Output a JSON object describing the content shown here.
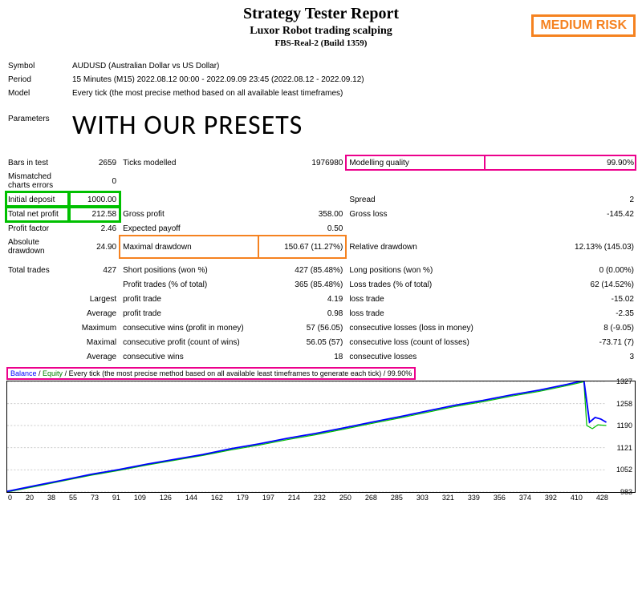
{
  "header": {
    "title": "Strategy Tester Report",
    "subtitle": "Luxor Robot trading scalping",
    "build": "FBS-Real-2 (Build 1359)",
    "risk_badge": "MEDIUM RISK"
  },
  "meta": {
    "symbol_label": "Symbol",
    "symbol_value": "AUDUSD (Australian Dollar vs US Dollar)",
    "period_label": "Period",
    "period_value": "15 Minutes (M15) 2022.08.12 00:00 - 2022.09.09 23:45 (2022.08.12 - 2022.09.12)",
    "model_label": "Model",
    "model_value": "Every tick (the most precise method based on all available least timeframes)",
    "parameters_label": "Parameters",
    "presets_overlay": "WITH OUR PRESETS"
  },
  "stats": {
    "bars_in_test_l": "Bars in test",
    "bars_in_test_v": "2659",
    "ticks_modelled_l": "Ticks modelled",
    "ticks_modelled_v": "1976980",
    "modelling_quality_l": "Modelling quality",
    "modelling_quality_v": "99.90%",
    "mismatched_l": "Mismatched charts errors",
    "mismatched_v": "0",
    "initial_deposit_l": "Initial deposit",
    "initial_deposit_v": "1000.00",
    "spread_l": "Spread",
    "spread_v": "2",
    "total_net_profit_l": "Total net profit",
    "total_net_profit_v": "212.58",
    "gross_profit_l": "Gross profit",
    "gross_profit_v": "358.00",
    "gross_loss_l": "Gross loss",
    "gross_loss_v": "-145.42",
    "profit_factor_l": "Profit factor",
    "profit_factor_v": "2.46",
    "expected_payoff_l": "Expected payoff",
    "expected_payoff_v": "0.50",
    "absolute_dd_l": "Absolute drawdown",
    "absolute_dd_v": "24.90",
    "maximal_dd_l": "Maximal drawdown",
    "maximal_dd_v": "150.67 (11.27%)",
    "relative_dd_l": "Relative drawdown",
    "relative_dd_v": "12.13% (145.03)",
    "total_trades_l": "Total trades",
    "total_trades_v": "427",
    "short_pos_l": "Short positions (won %)",
    "short_pos_v": "427 (85.48%)",
    "long_pos_l": "Long positions (won %)",
    "long_pos_v": "0 (0.00%)",
    "profit_trades_l": "Profit trades (% of total)",
    "profit_trades_v": "365 (85.48%)",
    "loss_trades_l": "Loss trades (% of total)",
    "loss_trades_v": "62 (14.52%)",
    "largest_l": "Largest",
    "largest_profit_l": "profit trade",
    "largest_profit_v": "4.19",
    "largest_loss_l": "loss trade",
    "largest_loss_v": "-15.02",
    "average_l": "Average",
    "average_profit_l": "profit trade",
    "average_profit_v": "0.98",
    "average_loss_l": "loss trade",
    "average_loss_v": "-2.35",
    "maximum_l": "Maximum",
    "max_cons_wins_l": "consecutive wins (profit in money)",
    "max_cons_wins_v": "57 (56.05)",
    "max_cons_losses_l": "consecutive losses (loss in money)",
    "max_cons_losses_v": "8 (-9.05)",
    "maximal_l": "Maximal",
    "maximal_cons_profit_l": "consecutive profit (count of wins)",
    "maximal_cons_profit_v": "56.05 (57)",
    "maximal_cons_loss_l": "consecutive loss (count of losses)",
    "maximal_cons_loss_v": "-73.71 (7)",
    "average2_l": "Average",
    "avg_cons_wins_l": "consecutive wins",
    "avg_cons_wins_v": "18",
    "avg_cons_losses_l": "consecutive losses",
    "avg_cons_losses_v": "3"
  },
  "chart": {
    "legend_balance": "Balance",
    "legend_equity": "Equity",
    "legend_sep": " / ",
    "legend_tail": "Every tick (the most precise method based on all available least timeframes to generate each tick) / 99.90%",
    "x_ticks": [
      "0",
      "20",
      "38",
      "55",
      "73",
      "91",
      "109",
      "126",
      "144",
      "162",
      "179",
      "197",
      "214",
      "232",
      "250",
      "268",
      "285",
      "303",
      "321",
      "339",
      "356",
      "374",
      "392",
      "410",
      "428"
    ],
    "y_ticks": [
      "1327",
      "1258",
      "1190",
      "1121",
      "1052",
      "983"
    ],
    "y_min": 983,
    "y_max": 1327,
    "balance_color": "#0000ff",
    "equity_color": "#00c000",
    "balance_points": [
      [
        0,
        985
      ],
      [
        20,
        1003
      ],
      [
        40,
        1020
      ],
      [
        60,
        1038
      ],
      [
        80,
        1053
      ],
      [
        100,
        1070
      ],
      [
        120,
        1085
      ],
      [
        140,
        1100
      ],
      [
        160,
        1118
      ],
      [
        180,
        1133
      ],
      [
        200,
        1150
      ],
      [
        220,
        1165
      ],
      [
        240,
        1182
      ],
      [
        260,
        1200
      ],
      [
        280,
        1217
      ],
      [
        300,
        1235
      ],
      [
        320,
        1253
      ],
      [
        340,
        1268
      ],
      [
        360,
        1285
      ],
      [
        380,
        1300
      ],
      [
        400,
        1318
      ],
      [
        412,
        1330
      ],
      [
        416,
        1200
      ],
      [
        420,
        1215
      ],
      [
        424,
        1210
      ],
      [
        428,
        1200
      ]
    ],
    "equity_points": [
      [
        0,
        983
      ],
      [
        20,
        1000
      ],
      [
        40,
        1018
      ],
      [
        60,
        1035
      ],
      [
        80,
        1050
      ],
      [
        100,
        1067
      ],
      [
        120,
        1082
      ],
      [
        140,
        1097
      ],
      [
        160,
        1114
      ],
      [
        180,
        1129
      ],
      [
        200,
        1146
      ],
      [
        220,
        1161
      ],
      [
        240,
        1178
      ],
      [
        260,
        1196
      ],
      [
        280,
        1213
      ],
      [
        300,
        1231
      ],
      [
        320,
        1249
      ],
      [
        340,
        1264
      ],
      [
        360,
        1281
      ],
      [
        380,
        1296
      ],
      [
        400,
        1314
      ],
      [
        412,
        1326
      ],
      [
        414,
        1190
      ],
      [
        418,
        1180
      ],
      [
        422,
        1192
      ],
      [
        428,
        1190
      ]
    ]
  },
  "colors": {
    "pink": "#ec008c",
    "green": "#00c000",
    "orange": "#f58220",
    "blue": "#0000ff"
  }
}
